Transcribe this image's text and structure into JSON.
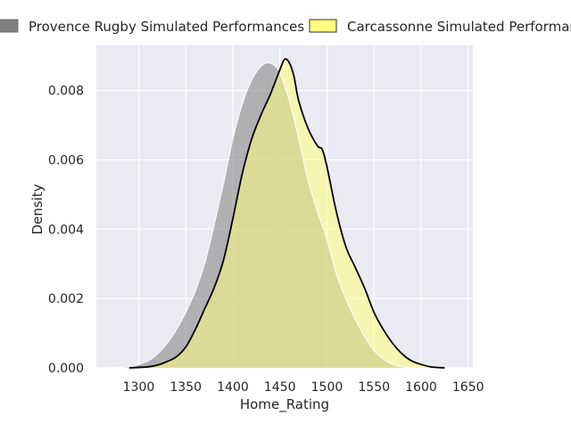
{
  "chart_data": {
    "type": "area",
    "xlabel": "Home_Rating",
    "ylabel": "Density",
    "xlim": [
      1255,
      1655
    ],
    "ylim": [
      0,
      0.0093
    ],
    "xticks": [
      "1300",
      "1350",
      "1400",
      "1450",
      "1500",
      "1550",
      "1600",
      "1650"
    ],
    "yticks": [
      "0.000",
      "0.002",
      "0.004",
      "0.006",
      "0.008"
    ],
    "grid": true,
    "legend_position": "top",
    "series": [
      {
        "name": "Provence Rugby Simulated Performances",
        "color": "#808080",
        "x": [
          1270,
          1290,
          1300,
          1310,
          1320,
          1330,
          1340,
          1350,
          1360,
          1370,
          1380,
          1390,
          1400,
          1410,
          1420,
          1430,
          1438,
          1445,
          1450,
          1460,
          1470,
          1480,
          1490,
          1500,
          1510,
          1520,
          1530,
          1540,
          1550,
          1560,
          1570,
          1580,
          1590
        ],
        "y": [
          0.0,
          3e-05,
          0.0001,
          0.0002,
          0.0004,
          0.0007,
          0.0011,
          0.0016,
          0.0022,
          0.003,
          0.0041,
          0.0053,
          0.0066,
          0.0076,
          0.0083,
          0.0087,
          0.0088,
          0.0087,
          0.0085,
          0.0077,
          0.0066,
          0.0054,
          0.0045,
          0.0037,
          0.0027,
          0.002,
          0.0014,
          0.0009,
          0.0005,
          0.00025,
          0.0001,
          3e-05,
          0.0
        ]
      },
      {
        "name": "Carcassonne Simulated Performances",
        "color": "#ffff80",
        "x": [
          1290,
          1310,
          1320,
          1330,
          1340,
          1350,
          1360,
          1370,
          1380,
          1390,
          1400,
          1410,
          1420,
          1430,
          1440,
          1450,
          1455,
          1460,
          1465,
          1470,
          1480,
          1490,
          1495,
          1500,
          1510,
          1520,
          1530,
          1540,
          1550,
          1560,
          1570,
          1580,
          1590,
          1600,
          1610,
          1625
        ],
        "y": [
          0.0,
          3e-05,
          8e-05,
          0.00018,
          0.00032,
          0.0006,
          0.0011,
          0.0017,
          0.0023,
          0.0031,
          0.0043,
          0.0056,
          0.0066,
          0.0073,
          0.0079,
          0.0086,
          0.0089,
          0.0088,
          0.0084,
          0.0077,
          0.0069,
          0.0064,
          0.0063,
          0.0058,
          0.0045,
          0.0035,
          0.0029,
          0.0023,
          0.0016,
          0.0011,
          0.0007,
          0.0004,
          0.0002,
          0.0001,
          3e-05,
          0.0
        ]
      }
    ]
  }
}
